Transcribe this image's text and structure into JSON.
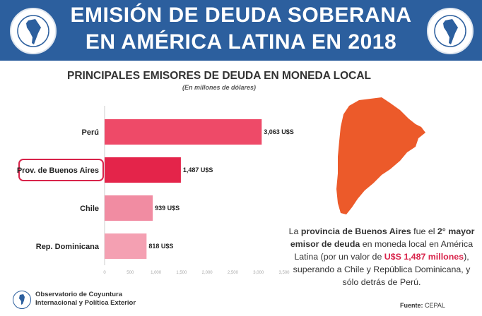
{
  "header": {
    "title_line1": "EMISIÓN DE DEUDA SOBERANA",
    "title_line2": "EN AMÉRICA LATINA EN 2018"
  },
  "colors": {
    "header_bg": "#2c5f9e",
    "bar_peru": "#ee4a68",
    "bar_baires": "#e4244a",
    "bar_chile": "#f18ca2",
    "bar_rd": "#f4a0b2",
    "map_fill": "#ec5a2a",
    "highlight": "#d8234a"
  },
  "chart_data": {
    "type": "bar",
    "orientation": "horizontal",
    "title": "PRINCIPALES EMISORES DE DEUDA EN MONEDA LOCAL",
    "subtitle": "(En millones de dólares)",
    "categories": [
      "Perú",
      "Prov. de Buenos Aires",
      "Chile",
      "Rep. Dominicana"
    ],
    "values": [
      3063,
      1487,
      939,
      818
    ],
    "value_labels": [
      "3,063 U$S",
      "1,487 U$S",
      "939 U$S",
      "818 U$S"
    ],
    "highlighted_category": "Prov. de Buenos Aires",
    "xlim": [
      0,
      3500
    ],
    "xticks": [
      0,
      500,
      1000,
      1500,
      2000,
      2500,
      3000,
      3500
    ],
    "xtick_labels": [
      "0",
      "500",
      "1,000",
      "1,500",
      "2,000",
      "2,500",
      "3,000",
      "3,500"
    ],
    "grid": false
  },
  "note": {
    "p1": "La ",
    "b1": "provincia de Buenos Aires",
    "p2": " fue el ",
    "b2": "2° mayor emisor de deuda",
    "p3": " en moneda local en América Latina (por un valor de ",
    "hl": "U$S 1,487 millones",
    "p4": "), superando a Chile y República Dominicana, y sólo detrás de Perú."
  },
  "footer": {
    "org_line1": "Observatorio de Coyuntura",
    "org_line2": "Internacional y Política Exterior",
    "source_label": "Fuente:",
    "source_value": " CEPAL"
  }
}
